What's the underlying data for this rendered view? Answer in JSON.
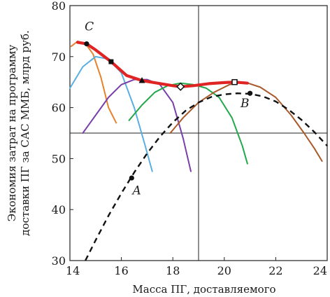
{
  "chart_data": {
    "type": "line",
    "xlabel": "Масса ПГ, доставляемого",
    "ylabel_lines": [
      "Экономия затрат на программу",
      "доставки ПГ за САС ММБ, млрд руб."
    ],
    "xlim": [
      14,
      24
    ],
    "ylim": [
      30,
      80
    ],
    "xticks": [
      14,
      16,
      18,
      20,
      22,
      24
    ],
    "yticks": [
      30,
      40,
      50,
      60,
      70,
      80
    ],
    "grid": "center lines only",
    "colors": {
      "orange": "#e8822a",
      "blue": "#5aaee0",
      "purple": "#7a3fa8",
      "green": "#22a84a",
      "brown": "#a85a2a",
      "envelope": "#e02424",
      "dashed": "#111111"
    },
    "series": [
      {
        "color": "orange",
        "x": [
          14.05,
          14.3,
          14.6,
          14.9,
          15.2,
          15.5,
          15.8
        ],
        "y": [
          72.0,
          73.0,
          72.6,
          70.5,
          66.0,
          60.0,
          57.0
        ]
      },
      {
        "color": "blue",
        "x": [
          14.0,
          14.5,
          15.0,
          15.5,
          16.0,
          16.5,
          16.9,
          17.2
        ],
        "y": [
          63.8,
          68.0,
          70.0,
          69.5,
          66.8,
          60.0,
          53.0,
          47.5
        ]
      },
      {
        "color": "purple",
        "x": [
          14.5,
          15.0,
          15.5,
          16.0,
          16.5,
          17.0,
          17.5,
          18.0,
          18.4,
          18.7
        ],
        "y": [
          55.0,
          58.5,
          62.0,
          64.5,
          65.5,
          65.5,
          64.5,
          61.0,
          54.0,
          47.5
        ]
      },
      {
        "color": "green",
        "x": [
          16.3,
          16.8,
          17.3,
          17.8,
          18.3,
          18.8,
          19.3,
          19.8,
          20.3,
          20.7,
          20.9
        ],
        "y": [
          57.5,
          60.5,
          63.0,
          64.3,
          64.8,
          64.5,
          63.8,
          62.0,
          58.0,
          52.5,
          49.0
        ]
      },
      {
        "color": "brown",
        "x": [
          17.9,
          18.4,
          19.0,
          19.6,
          20.2,
          20.8,
          21.4,
          22.0,
          22.6,
          23.1,
          23.5,
          23.8
        ],
        "y": [
          55.0,
          58.0,
          61.0,
          63.0,
          64.5,
          65.0,
          64.0,
          62.0,
          58.5,
          55.0,
          52.0,
          49.5
        ]
      },
      {
        "color": "dashed",
        "x": [
          14.6,
          15.0,
          15.5,
          16.0,
          16.5,
          17.0,
          17.5,
          18.0,
          18.5,
          19.0,
          19.5,
          20.0,
          20.5,
          21.0,
          21.5,
          22.0,
          22.5,
          23.0,
          23.5,
          24.0
        ],
        "y": [
          30.0,
          34.0,
          38.8,
          43.2,
          47.3,
          51.0,
          54.3,
          57.1,
          59.4,
          61.0,
          62.1,
          62.6,
          62.8,
          62.7,
          62.2,
          61.2,
          59.6,
          57.6,
          55.2,
          52.5
        ]
      },
      {
        "color": "envelope",
        "x": [
          14.3,
          14.65,
          15.0,
          15.6,
          16.2,
          16.8,
          17.4,
          18.0,
          18.3,
          18.8,
          19.4,
          20.0,
          20.4,
          20.9
        ],
        "y": [
          72.8,
          72.5,
          71.3,
          69.0,
          66.3,
          65.3,
          64.8,
          64.3,
          64.1,
          64.3,
          64.7,
          64.9,
          65.0,
          64.8
        ]
      }
    ],
    "markers": [
      {
        "shape": "dot",
        "x": 14.65,
        "y": 72.5,
        "label": "C",
        "label_dx": 0.1,
        "label_dy": 2.6
      },
      {
        "shape": "square",
        "x": 15.6,
        "y": 69.0
      },
      {
        "shape": "triangle",
        "x": 16.8,
        "y": 65.3
      },
      {
        "shape": "diamond",
        "x": 18.3,
        "y": 64.1
      },
      {
        "shape": "square-open",
        "x": 20.4,
        "y": 65.0
      },
      {
        "shape": "dot",
        "x": 21.0,
        "y": 62.8,
        "label": "B",
        "label_dx": -0.2,
        "label_dy": -2.7
      },
      {
        "shape": "dot",
        "x": 16.4,
        "y": 46.2,
        "label": "A",
        "label_dx": 0.2,
        "label_dy": -3.2
      }
    ]
  }
}
